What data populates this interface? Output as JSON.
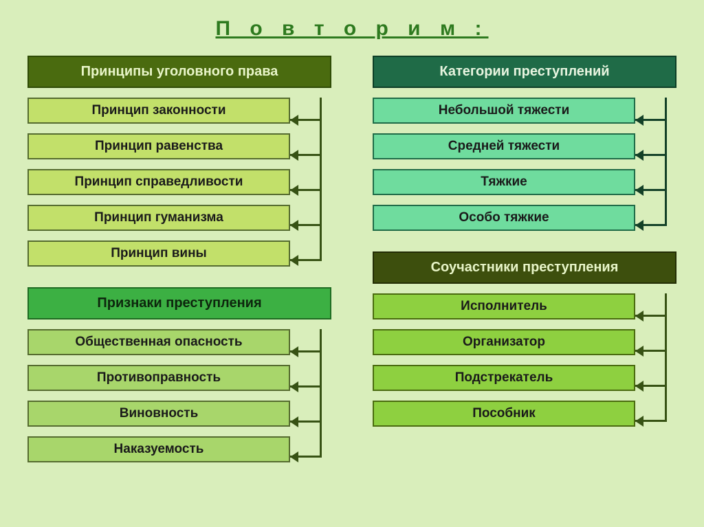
{
  "page": {
    "background_color": "#d9eebb",
    "title_text": "П о в т о р и м :",
    "title_color": "#2e7a1f"
  },
  "blocks": [
    {
      "id": "principles",
      "column": "left",
      "header": "Принципы уголовного права",
      "header_bg": "#4a6b0f",
      "header_fg": "#e8f5c8",
      "header_border": "#2e4a05",
      "item_bg": "#c2e06a",
      "item_fg": "#1a1a1a",
      "item_border": "#556b2f",
      "connector_color": "#375214",
      "items": [
        "Принцип законности",
        "Принцип равенства",
        "Принцип справедливости",
        "Принцип гуманизма",
        "Принцип вины"
      ]
    },
    {
      "id": "signs",
      "column": "left",
      "header": "Признаки преступления",
      "header_bg": "#3cb043",
      "header_fg": "#0d260d",
      "header_border": "#1f6b22",
      "item_bg": "#a8d66b",
      "item_fg": "#1a1a1a",
      "item_border": "#556b2f",
      "connector_color": "#375214",
      "items": [
        "Общественная опасность",
        "Противоправность",
        "Виновность",
        "Наказуемость"
      ]
    },
    {
      "id": "categories",
      "column": "right",
      "header": "Категории преступлений",
      "header_bg": "#1f6b47",
      "header_fg": "#e8f5e0",
      "header_border": "#0c3d25",
      "item_bg": "#6fdc9e",
      "item_fg": "#1a1a1a",
      "item_border": "#1f6b47",
      "connector_color": "#134027",
      "items": [
        "Небольшой тяжести",
        "Средней тяжести",
        "Тяжкие",
        "Особо тяжкие"
      ]
    },
    {
      "id": "accomplices",
      "column": "right",
      "header": "Соучастники преступления",
      "header_bg": "#3d4f0d",
      "header_fg": "#e8f5c8",
      "header_border": "#232d05",
      "item_bg": "#8ed040",
      "item_fg": "#1a1a1a",
      "item_border": "#4a6b0f",
      "connector_color": "#375214",
      "items": [
        "Исполнитель",
        "Организатор",
        "Подстрекатель",
        "Пособник"
      ]
    }
  ]
}
